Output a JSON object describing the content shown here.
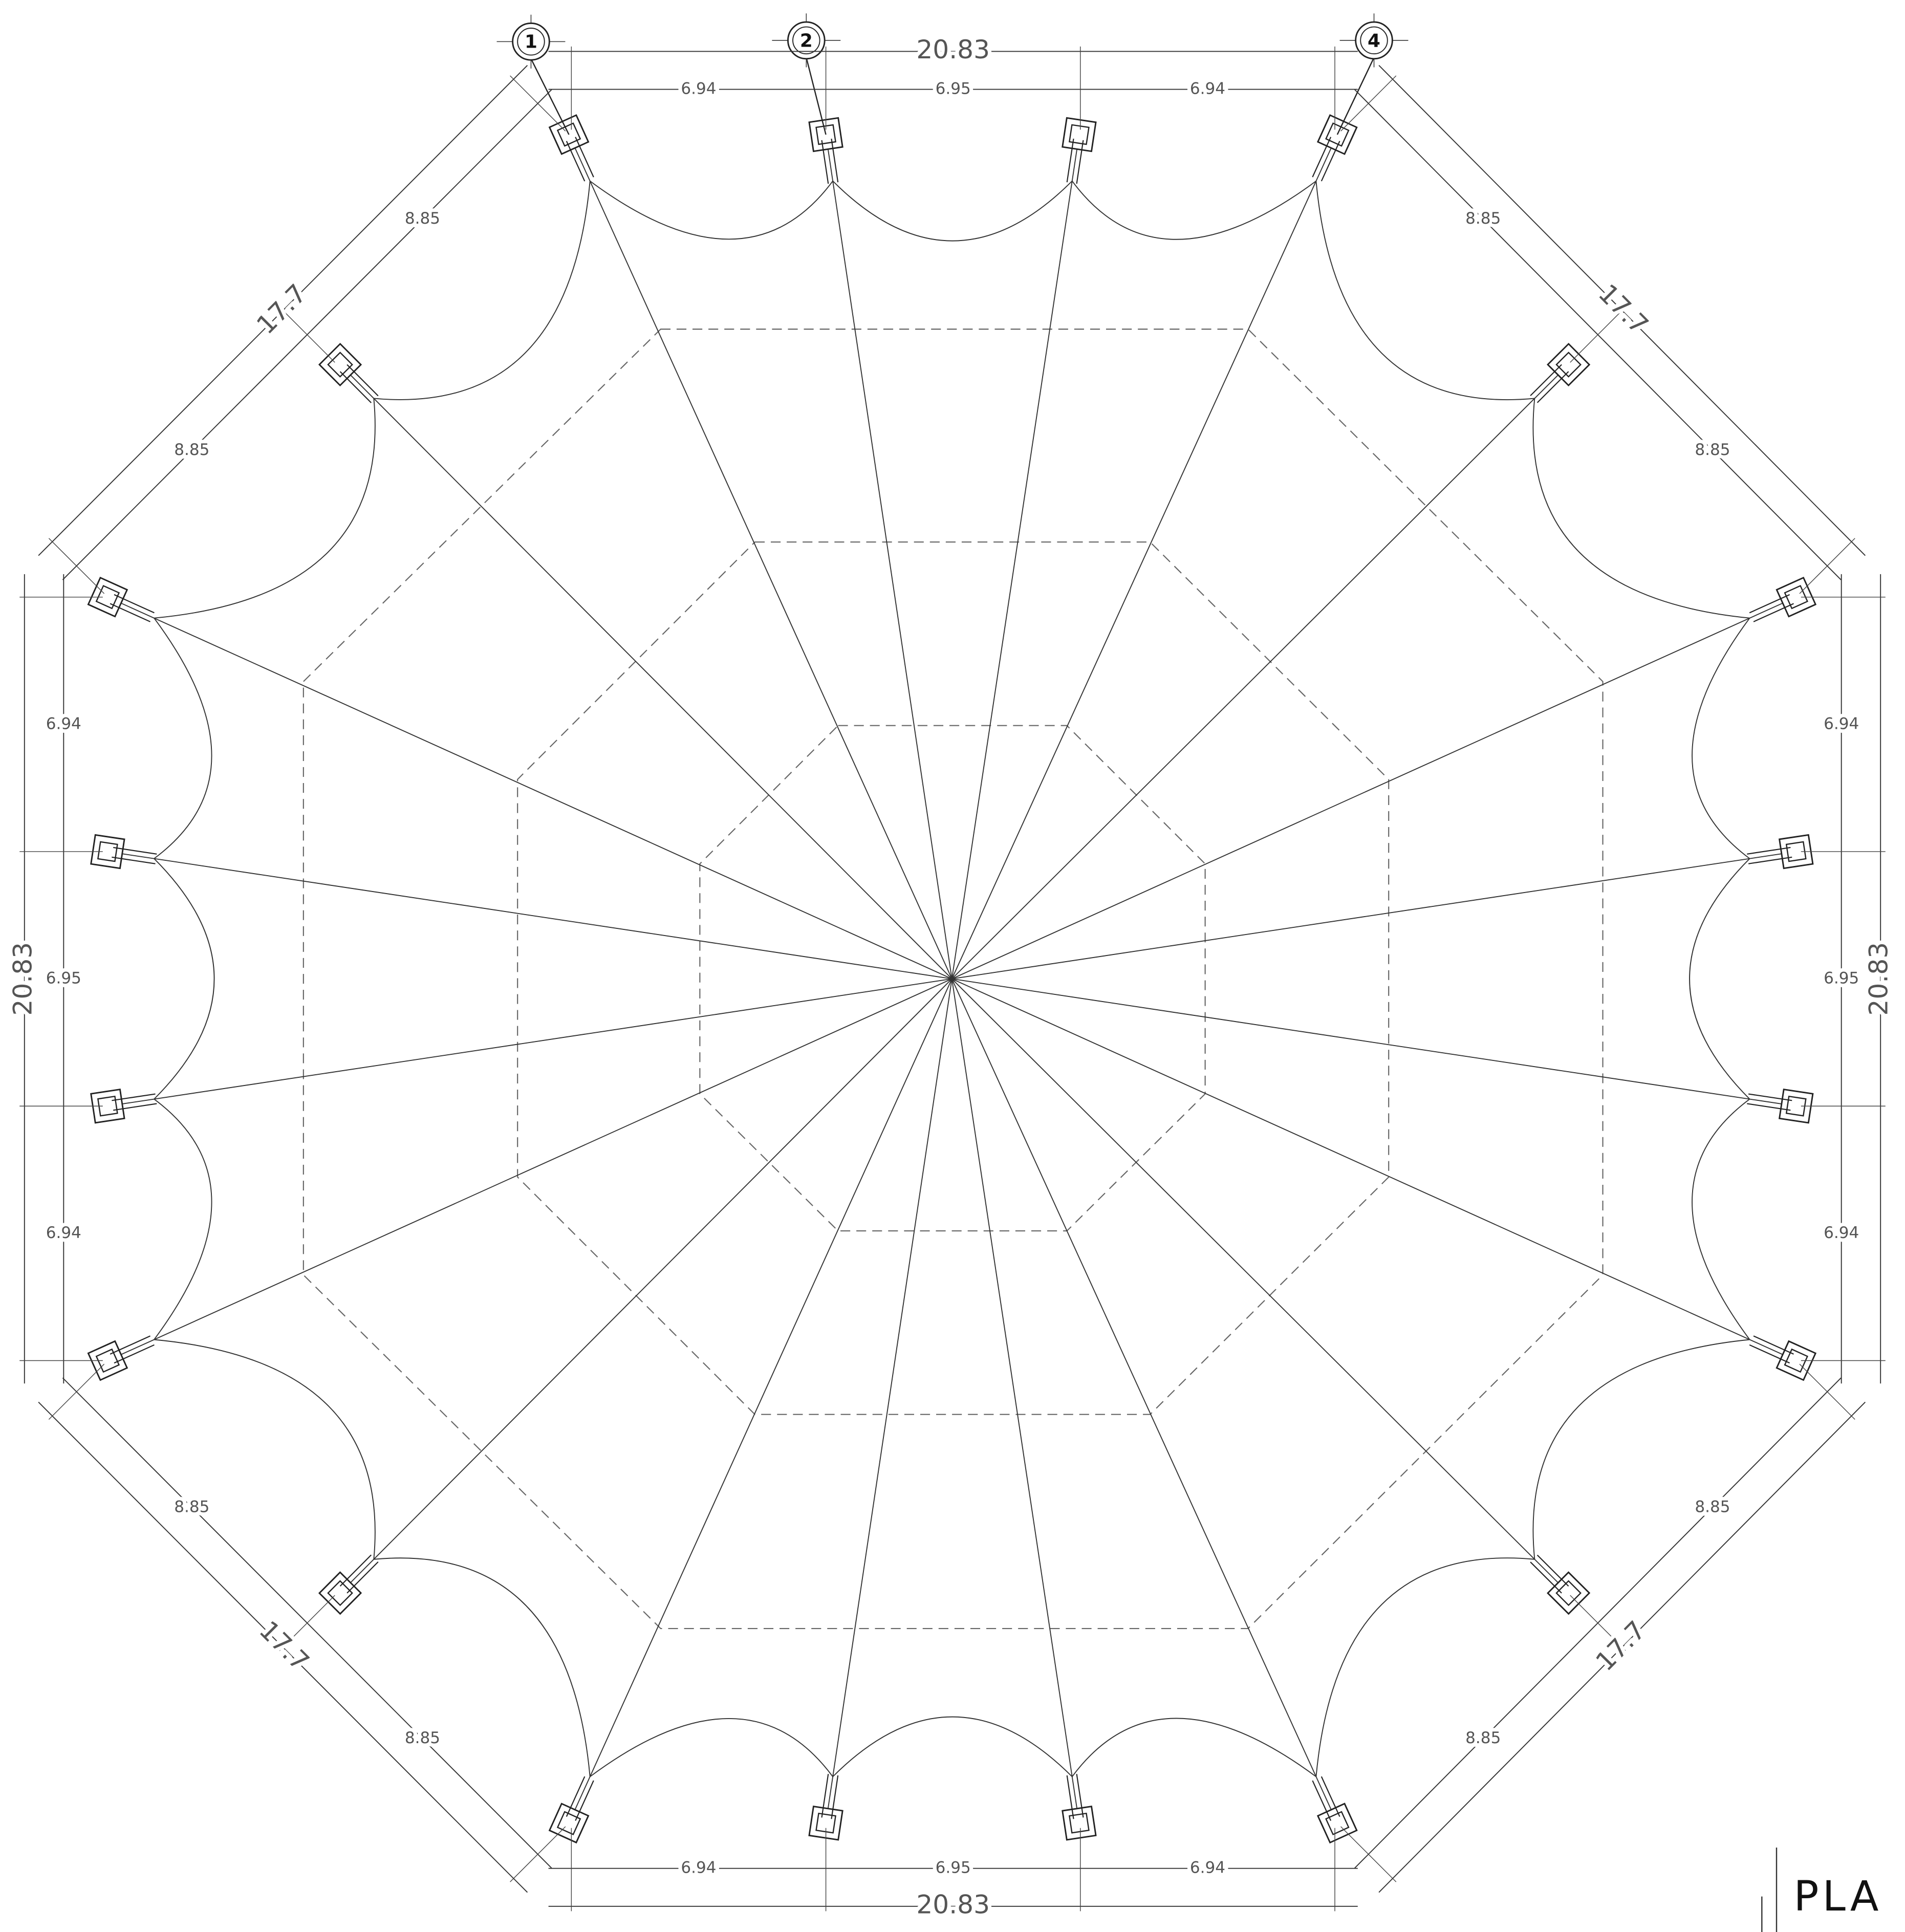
{
  "grid_markers": [
    "1",
    "2",
    "4"
  ],
  "dimensions": {
    "top": {
      "overall": "20.83",
      "segments": [
        "6.94",
        "6.95",
        "6.94"
      ]
    },
    "bottom": {
      "overall": "20.83",
      "segments": [
        "6.94",
        "6.95",
        "6.94"
      ]
    },
    "left": {
      "overall": "20.83",
      "segments": [
        "6.94",
        "6.95",
        "6.94"
      ]
    },
    "right": {
      "overall": "20.83",
      "segments": [
        "6.94",
        "6.95",
        "6.94"
      ]
    },
    "top_left": {
      "overall": "17.7",
      "segments": [
        "8.85",
        "8.85"
      ]
    },
    "top_right": {
      "overall": "17.7",
      "segments": [
        "8.85",
        "8.85"
      ]
    },
    "bottom_left": {
      "overall": "17.7",
      "segments": [
        "8.85",
        "8.85"
      ]
    },
    "bottom_right": {
      "overall": "17.7",
      "segments": [
        "8.85",
        "8.85"
      ]
    }
  },
  "title_fragment": "PLA"
}
